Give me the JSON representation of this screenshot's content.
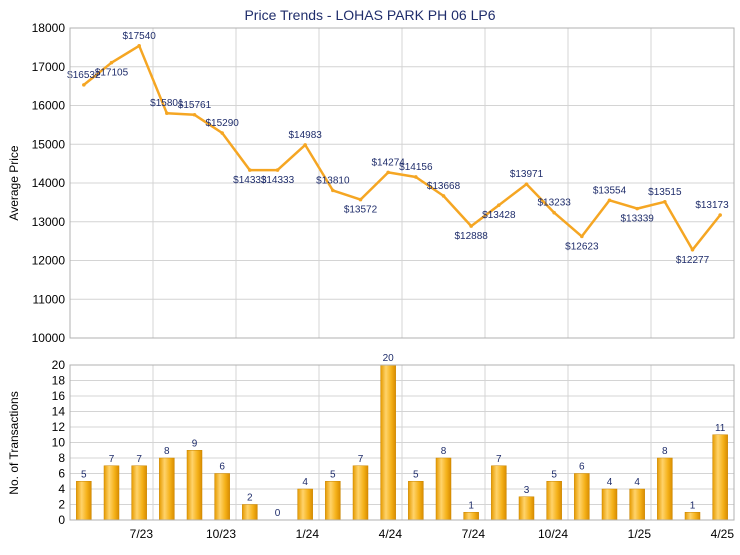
{
  "chart_data": {
    "title": "Price Trends - LOHAS PARK PH 06 LP6",
    "periods": 24,
    "x_tick_labels": [
      "7/23",
      "10/23",
      "1/24",
      "4/24",
      "7/24",
      "10/24",
      "1/25",
      "4/25"
    ],
    "colors": {
      "line": "#f5a623",
      "bar": "#f2a900",
      "title": "#1f2d6b",
      "label": "#1f2d6b"
    },
    "price": {
      "type": "line",
      "ylabel": "Average Price",
      "ylim": [
        10000,
        18000
      ],
      "y_ticks": [
        "10000",
        "11000",
        "12000",
        "13000",
        "14000",
        "15000",
        "16000",
        "17000",
        "18000"
      ],
      "values": [
        16532,
        17105,
        17540,
        15801,
        15761,
        15290,
        14333,
        14333,
        14983,
        13810,
        13572,
        14274,
        14156,
        13668,
        12888,
        13428,
        13971,
        13233,
        12623,
        13554,
        13339,
        13515,
        12277,
        13173
      ],
      "labels": [
        "$16532",
        "$17105",
        "$17540",
        "$15801",
        "$15761",
        "$15290",
        "$14333",
        "$14333",
        "$14983",
        "$13810",
        "$13572",
        "$14274",
        "$14156",
        "$13668",
        "$12888",
        "$13428",
        "$13971",
        "$13233",
        "$12623",
        "$13554",
        "$13339",
        "$13515",
        "$12277",
        "$13173"
      ]
    },
    "transactions": {
      "type": "bar",
      "ylabel": "No. of Transactions",
      "ylim": [
        0,
        20
      ],
      "y_ticks": [
        "0",
        "2",
        "4",
        "6",
        "8",
        "10",
        "12",
        "14",
        "16",
        "18",
        "20"
      ],
      "values": [
        5,
        7,
        7,
        8,
        9,
        6,
        2,
        0,
        4,
        5,
        7,
        20,
        5,
        8,
        1,
        7,
        3,
        5,
        6,
        4,
        4,
        8,
        1,
        11
      ],
      "labels": [
        "5",
        "7",
        "7",
        "8",
        "9",
        "6",
        "2",
        "0",
        "4",
        "5",
        "7",
        "20",
        "5",
        "8",
        "1",
        "7",
        "3",
        "5",
        "6",
        "4",
        "4",
        "8",
        "1",
        "11"
      ]
    }
  }
}
